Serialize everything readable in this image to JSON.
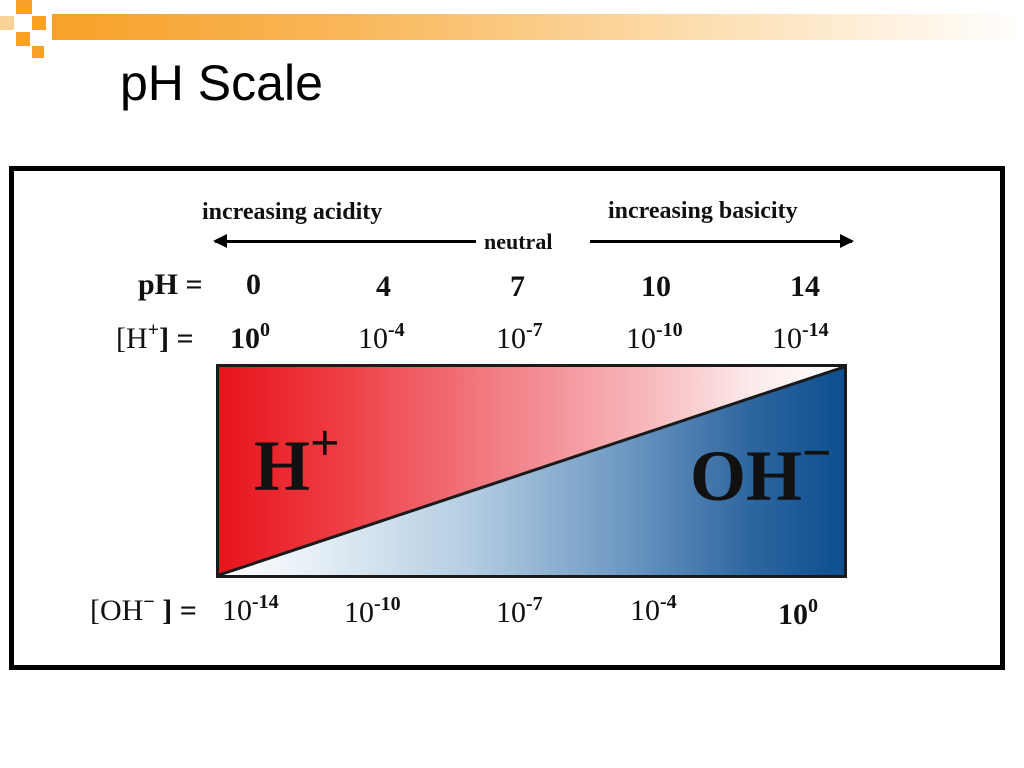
{
  "slide": {
    "title": "pH Scale"
  },
  "diagram": {
    "acidity_label": "increasing acidity",
    "basicity_label": "increasing basicity",
    "neutral_label": "neutral",
    "ph_row_label": "pH =",
    "ph_values": [
      "0",
      "4",
      "7",
      "10",
      "14"
    ],
    "h_row_label": "[H",
    "h_row_label_sup": "+",
    "h_row_label_end": "] = ",
    "h_base": "10",
    "h_exponents": [
      "0",
      "-4",
      "-7",
      "-10",
      "-14"
    ],
    "oh_row_label": "[OH",
    "oh_row_label_sup": "−",
    "oh_row_label_end": " ] =",
    "oh_base": "10",
    "oh_exponents": [
      "-14",
      "-10",
      "-7",
      "-4",
      "0"
    ],
    "h_ion": "H",
    "h_ion_sup": "+",
    "oh_ion": "OH",
    "oh_ion_sup": "−",
    "colors": {
      "acid_red": "#e8141c",
      "base_blue": "#0d4f8f",
      "neutral_white": "#ffffff",
      "frame": "#000000"
    }
  }
}
